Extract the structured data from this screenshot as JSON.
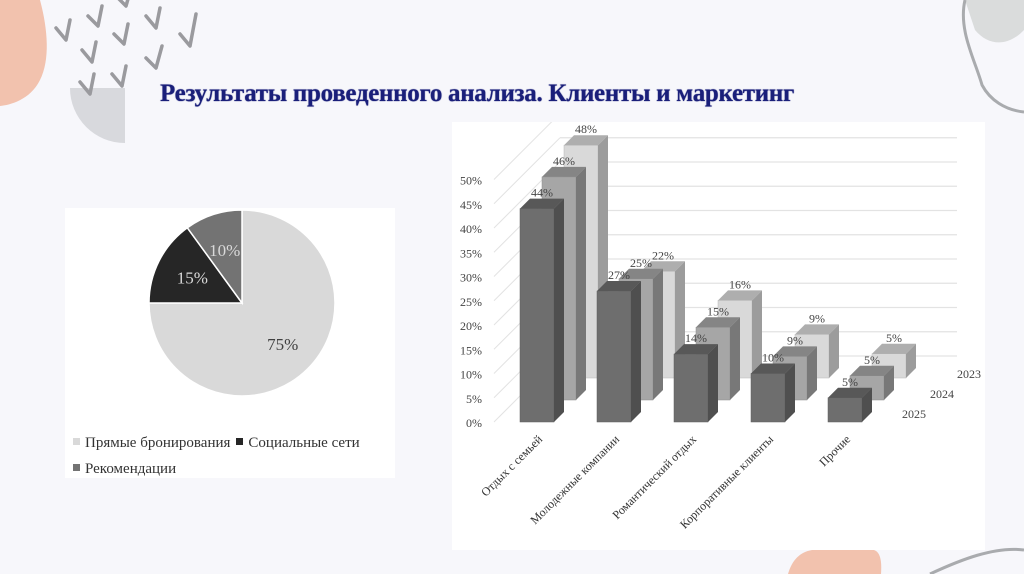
{
  "slide": {
    "title": "Результаты проведенного анализа. Клиенты и маркетинг",
    "title_color": "#1a1f7a",
    "background": "#f7f7fb"
  },
  "pie_chart": {
    "legend": [
      {
        "label": "Прямые бронирования",
        "color": "#d9d9d9"
      },
      {
        "label": "Социальные сети",
        "color": "#262626"
      },
      {
        "label": "Рекомендации",
        "color": "#737373"
      }
    ]
  },
  "bar_chart": {
    "depth_labels": [
      "2023",
      "2024",
      "2025"
    ],
    "y_ticks": [
      "0%",
      "5%",
      "10%",
      "15%",
      "20%",
      "25%",
      "30%",
      "35%",
      "40%",
      "45%",
      "50%"
    ]
  },
  "chart_data": [
    {
      "type": "pie",
      "title": "",
      "categories": [
        "Прямые бронирования",
        "Социальные сети",
        "Рекомендации"
      ],
      "values": [
        75,
        15,
        10
      ],
      "labels": [
        "75%",
        "15%",
        "10%"
      ],
      "colors": [
        "#d9d9d9",
        "#262626",
        "#737373"
      ],
      "legend_position": "bottom"
    },
    {
      "type": "bar",
      "subtype": "3d-clustered-depth",
      "title": "",
      "xlabel": "",
      "ylabel": "",
      "ylim": [
        0,
        50
      ],
      "y_tick_step": 5,
      "grid": true,
      "categories": [
        "Отдых с семьей",
        "Молодежные компании",
        "Романтический отдых",
        "Корпоративные клиенты",
        "Прочие"
      ],
      "series": [
        {
          "name": "2023",
          "values": [
            48,
            22,
            16,
            9,
            5
          ],
          "color": "#d9d9d9"
        },
        {
          "name": "2024",
          "values": [
            46,
            25,
            15,
            9,
            5
          ],
          "color": "#a6a6a6"
        },
        {
          "name": "2025",
          "values": [
            44,
            27,
            14,
            10,
            5
          ],
          "color": "#6e6e6e"
        }
      ],
      "legend_position": "depth-axis-right"
    }
  ]
}
